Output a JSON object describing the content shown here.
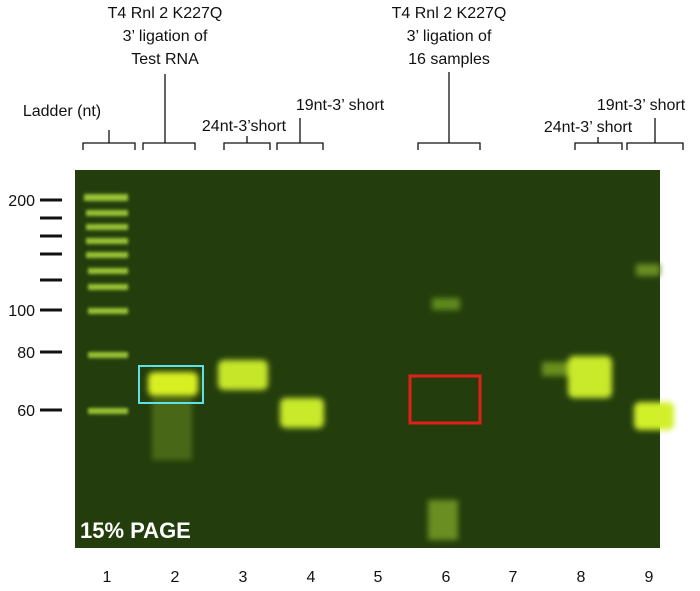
{
  "headings": [
    {
      "lines": [
        "T4 Rnl 2 K227Q",
        "3’ ligation of",
        "Test RNA"
      ]
    },
    {
      "lines": [
        "T4 Rnl 2 K227Q",
        "3’ ligation of",
        "16 samples"
      ]
    }
  ],
  "lane_groups": [
    "Ladder (nt)",
    "24nt-3’short",
    "19nt-3’ short",
    "24nt-3’ short",
    "19nt-3’ short"
  ],
  "size_markers": [
    200,
    100,
    80,
    60
  ],
  "lanes": [
    "1",
    "2",
    "3",
    "4",
    "5",
    "6",
    "7",
    "8",
    "9"
  ],
  "gel_label": "15% PAGE"
}
